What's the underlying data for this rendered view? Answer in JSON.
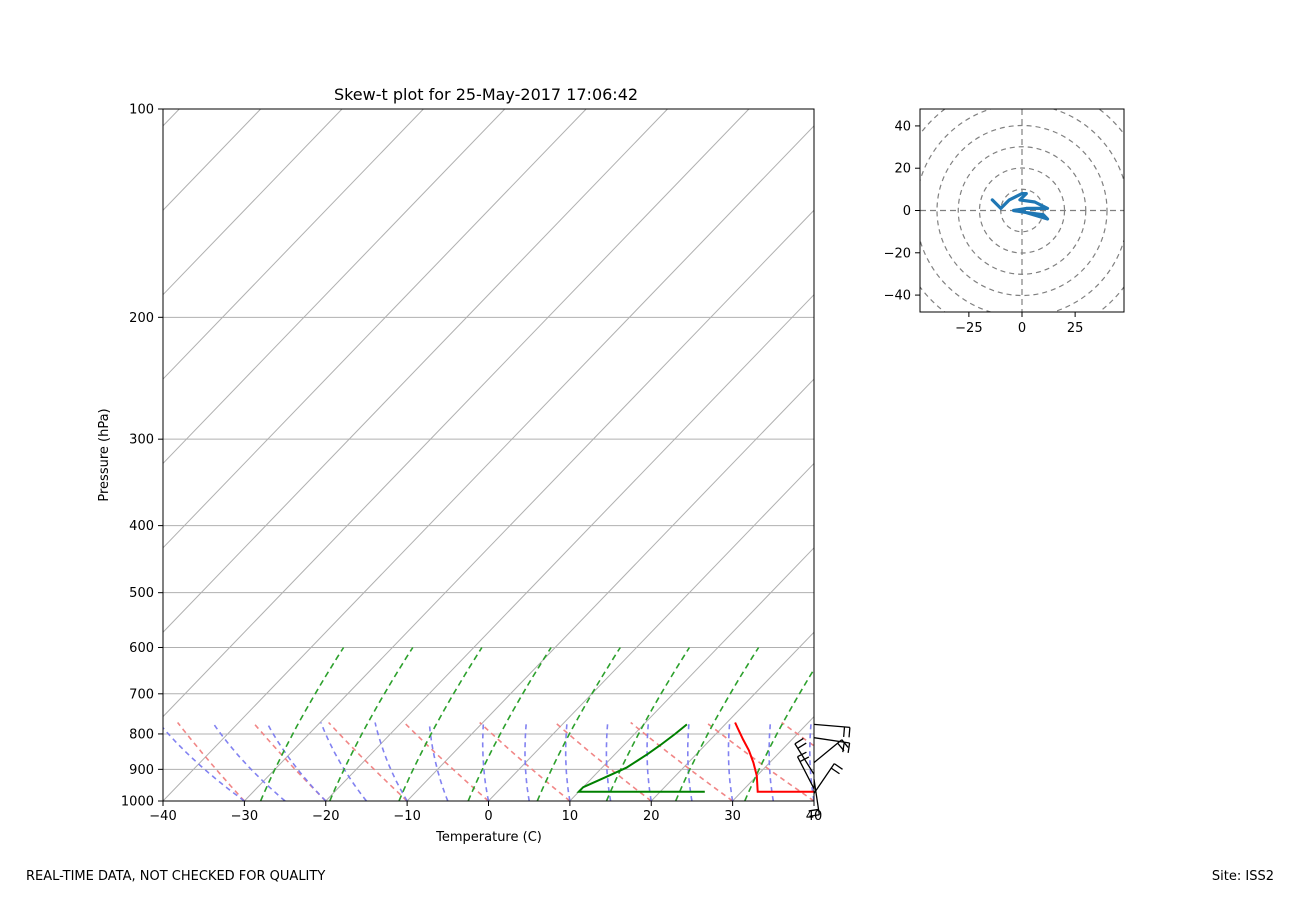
{
  "footer": {
    "left_text": "REAL-TIME DATA, NOT CHECKED FOR QUALITY",
    "right_text": "Site: ISS2"
  },
  "colors": {
    "temperature": "#ff0000",
    "dewpoint": "#008000",
    "dry_adiabats": "#f08080",
    "moist_adiabats": "#7b7bf0",
    "mixing_ratio": "#2ca02c",
    "isotherms": "#b0b0b0",
    "hodograph": "#1f77b4"
  },
  "chart_data": [
    {
      "type": "line",
      "subtype": "skew-t",
      "title": "Skew-t plot for 25-May-2017 17:06:42",
      "xlabel": "Temperature (C)",
      "ylabel": "Pressure (hPa)",
      "xlim": [
        -40,
        40
      ],
      "ylim": [
        1000,
        100
      ],
      "y_scale": "log",
      "x_ticks": [
        -40,
        -30,
        -20,
        -10,
        0,
        10,
        20,
        30,
        40
      ],
      "y_ticks": [
        100,
        200,
        300,
        400,
        500,
        600,
        700,
        800,
        900,
        1000
      ],
      "grid": true,
      "series": [
        {
          "role": "temperature",
          "points": [
            [
              40,
              970
            ],
            [
              37,
              970
            ],
            [
              34,
              970
            ],
            [
              32,
              970
            ],
            [
              30,
              920
            ],
            [
              28,
              880
            ],
            [
              26,
              845
            ],
            [
              24,
              815
            ],
            [
              22,
              785
            ],
            [
              21,
              770
            ]
          ]
        },
        {
          "role": "dewpoint",
          "points": [
            [
              25.5,
              970
            ],
            [
              20,
              970
            ],
            [
              15,
              970
            ],
            [
              10,
              970
            ],
            [
              10,
              955
            ],
            [
              11,
              935
            ],
            [
              12,
              915
            ],
            [
              13,
              895
            ],
            [
              13.5,
              875
            ],
            [
              14,
              855
            ],
            [
              14.5,
              830
            ],
            [
              15,
              800
            ],
            [
              15.3,
              775
            ]
          ]
        }
      ],
      "wind_barbs": [
        {
          "p": 775,
          "u": 36,
          "v": -3
        },
        {
          "p": 810,
          "u": 40,
          "v": -6
        },
        {
          "p": 880,
          "u": 34,
          "v": 28
        },
        {
          "p": 915,
          "u": -20,
          "v": 32
        },
        {
          "p": 930,
          "u": 6,
          "v": -40
        },
        {
          "p": 960,
          "u": -18,
          "v": 35
        },
        {
          "p": 975,
          "u": 15,
          "v": 22
        }
      ]
    },
    {
      "type": "line",
      "subtype": "hodograph",
      "xlim": [
        -48,
        48
      ],
      "ylim": [
        -48,
        48
      ],
      "x_ticks": [
        -25,
        0,
        25
      ],
      "y_ticks": [
        -40,
        -20,
        0,
        20,
        40
      ],
      "rings": [
        10,
        20,
        30,
        40,
        50,
        60
      ],
      "series": [
        {
          "points": [
            [
              -14,
              5
            ],
            [
              -10,
              1
            ],
            [
              -6,
              5
            ],
            [
              0,
              8
            ],
            [
              2,
              8
            ],
            [
              -1,
              5
            ],
            [
              6,
              4
            ],
            [
              12,
              1
            ],
            [
              2,
              1
            ],
            [
              -4,
              0
            ],
            [
              2,
              -1
            ],
            [
              10,
              -2
            ],
            [
              12,
              -4
            ],
            [
              2,
              -1
            ],
            [
              -2,
              0
            ]
          ]
        }
      ]
    }
  ]
}
